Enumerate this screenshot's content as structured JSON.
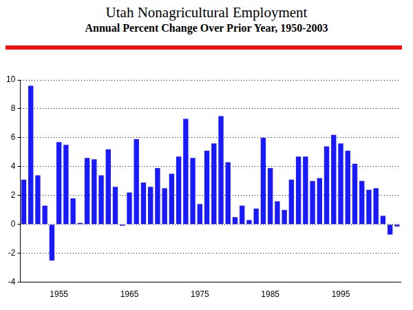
{
  "chart_data": {
    "type": "bar",
    "title": "Utah Nonagricultural Employment",
    "subtitle": "Annual Percent Change Over Prior Year, 1950-2003",
    "categories": [
      null,
      null,
      null,
      null,
      null,
      "1955",
      null,
      null,
      null,
      null,
      null,
      null,
      null,
      null,
      null,
      "1965",
      null,
      null,
      null,
      null,
      null,
      null,
      null,
      null,
      null,
      "1975",
      null,
      null,
      null,
      null,
      null,
      null,
      null,
      null,
      null,
      "1985",
      null,
      null,
      null,
      null,
      null,
      null,
      null,
      null,
      null,
      "1995",
      null,
      null,
      null,
      null,
      null,
      null,
      null,
      null
    ],
    "values": [
      3.1,
      9.6,
      3.4,
      1.3,
      -2.5,
      5.7,
      5.5,
      1.8,
      0.1,
      4.6,
      4.5,
      3.4,
      5.2,
      2.6,
      -0.1,
      2.2,
      5.9,
      2.9,
      2.6,
      3.9,
      2.5,
      3.5,
      4.7,
      7.3,
      4.6,
      1.4,
      5.1,
      5.6,
      7.5,
      4.3,
      0.5,
      1.3,
      0.3,
      1.1,
      6.0,
      3.9,
      1.6,
      1.0,
      3.1,
      4.7,
      4.7,
      3.0,
      3.2,
      5.4,
      6.2,
      5.6,
      5.1,
      4.2,
      3.0,
      2.4,
      2.5,
      0.6,
      -0.7,
      -0.15
    ],
    "color": "#1a1aff",
    "ylim": [
      -4,
      10
    ],
    "yticks": [
      -4,
      -2,
      0,
      2,
      4,
      6,
      8,
      10
    ],
    "grid": true
  }
}
